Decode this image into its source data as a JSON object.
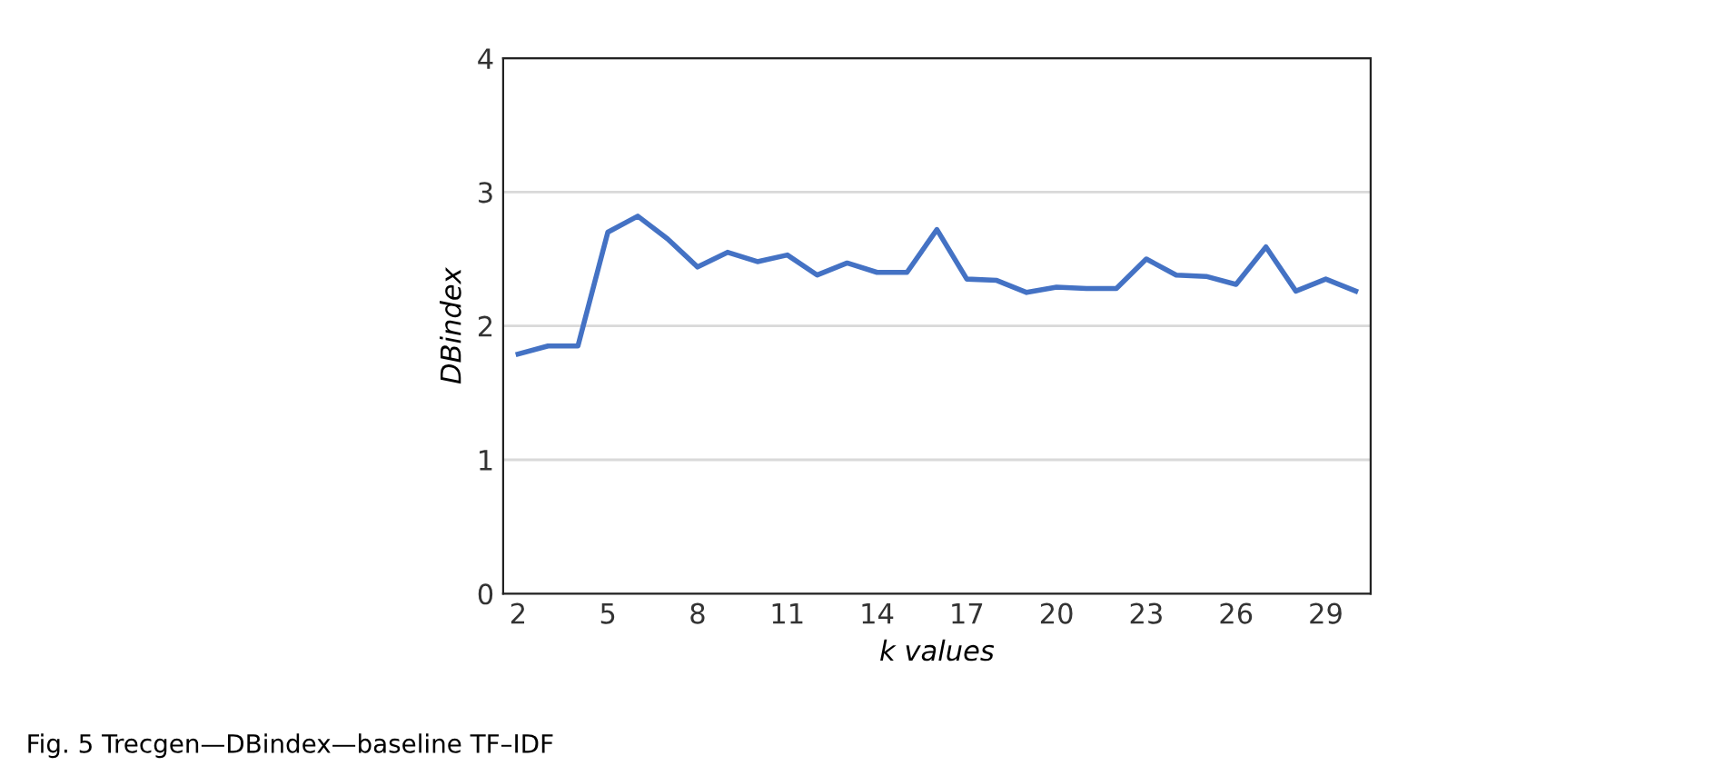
{
  "chart_data": {
    "type": "line",
    "xlabel": "k values",
    "ylabel": "DBindex",
    "x": [
      2,
      3,
      4,
      5,
      6,
      7,
      8,
      9,
      10,
      11,
      12,
      13,
      14,
      15,
      16,
      17,
      18,
      19,
      20,
      21,
      22,
      23,
      24,
      25,
      26,
      27,
      28,
      29,
      30
    ],
    "series": [
      {
        "color": "#4472c4",
        "values": [
          1.79,
          1.85,
          1.85,
          2.7,
          2.82,
          2.65,
          2.44,
          2.55,
          2.48,
          2.53,
          2.38,
          2.47,
          2.4,
          2.4,
          2.72,
          2.35,
          2.34,
          2.25,
          2.29,
          2.28,
          2.28,
          2.5,
          2.38,
          2.37,
          2.31,
          2.59,
          2.26,
          2.35,
          2.26
        ]
      }
    ],
    "xlim": [
      1.5,
      30.5
    ],
    "xticks": [
      2,
      5,
      8,
      11,
      14,
      17,
      20,
      23,
      26,
      29
    ],
    "ylim": [
      0,
      4
    ],
    "yticks": [
      0,
      1,
      2,
      3,
      4
    ],
    "grid": "y",
    "marker": "none",
    "line_style": "solid",
    "annotations": [
      "Fig. 5 Trecgen—DBindex—baseline TF–IDF"
    ]
  }
}
